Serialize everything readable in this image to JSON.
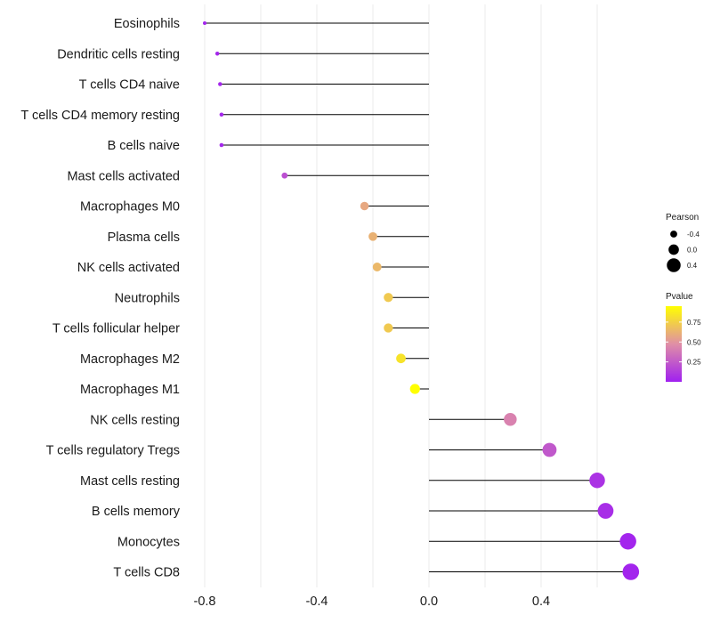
{
  "chart_data": {
    "type": "lollipop",
    "title": "",
    "xlabel": "",
    "ylabel": "",
    "xlim": [
      -0.82,
      0.73
    ],
    "x_ticks": [
      {
        "value": -0.8,
        "label": "-0.8"
      },
      {
        "value": -0.4,
        "label": "-0.4"
      },
      {
        "value": 0.0,
        "label": "0.0"
      },
      {
        "value": 0.4,
        "label": "0.4"
      }
    ],
    "grid": true,
    "points": [
      {
        "name": "Eosinophils",
        "pearson": -0.8,
        "pvalue": 0.02
      },
      {
        "name": "Dendritic cells resting",
        "pearson": -0.755,
        "pvalue": 0.03
      },
      {
        "name": "T cells CD4 naive",
        "pearson": -0.745,
        "pvalue": 0.03
      },
      {
        "name": "T cells CD4 memory resting",
        "pearson": -0.74,
        "pvalue": 0.03
      },
      {
        "name": "B cells naive",
        "pearson": -0.74,
        "pvalue": 0.03
      },
      {
        "name": "Mast cells activated",
        "pearson": -0.515,
        "pvalue": 0.2
      },
      {
        "name": "Macrophages M0",
        "pearson": -0.23,
        "pvalue": 0.58
      },
      {
        "name": "Plasma cells",
        "pearson": -0.2,
        "pvalue": 0.62
      },
      {
        "name": "NK cells activated",
        "pearson": -0.185,
        "pvalue": 0.65
      },
      {
        "name": "Neutrophils",
        "pearson": -0.145,
        "pvalue": 0.72
      },
      {
        "name": "T cells follicular helper",
        "pearson": -0.145,
        "pvalue": 0.72
      },
      {
        "name": "Macrophages M2",
        "pearson": -0.1,
        "pvalue": 0.83
      },
      {
        "name": "Macrophages M1",
        "pearson": -0.05,
        "pvalue": 0.95
      },
      {
        "name": "NK cells resting",
        "pearson": 0.29,
        "pvalue": 0.42
      },
      {
        "name": "T cells regulatory  Tregs",
        "pearson": 0.43,
        "pvalue": 0.24
      },
      {
        "name": "Mast cells resting",
        "pearson": 0.6,
        "pvalue": 0.08
      },
      {
        "name": "B cells memory",
        "pearson": 0.63,
        "pvalue": 0.06
      },
      {
        "name": "Monocytes",
        "pearson": 0.71,
        "pvalue": 0.02
      },
      {
        "name": "T cells CD8",
        "pearson": 0.72,
        "pvalue": 0.02
      }
    ],
    "legend_size": {
      "title": "Pearson",
      "items": [
        {
          "label": "-0.4",
          "value": -0.4
        },
        {
          "label": "0.0",
          "value": 0.0
        },
        {
          "label": "0.4",
          "value": 0.4
        }
      ]
    },
    "legend_color": {
      "title": "Pvalue",
      "ticks": [
        {
          "label": "0.75",
          "value": 0.75
        },
        {
          "label": "0.50",
          "value": 0.5
        },
        {
          "label": "0.25",
          "value": 0.25
        }
      ],
      "range": [
        0.0,
        0.95
      ],
      "low_color": "#a020f0",
      "mid_color": "#e08fa6",
      "high_color": "#ffff00"
    },
    "colors": {
      "stem": "#000000",
      "grid": "#ebebeb"
    }
  }
}
